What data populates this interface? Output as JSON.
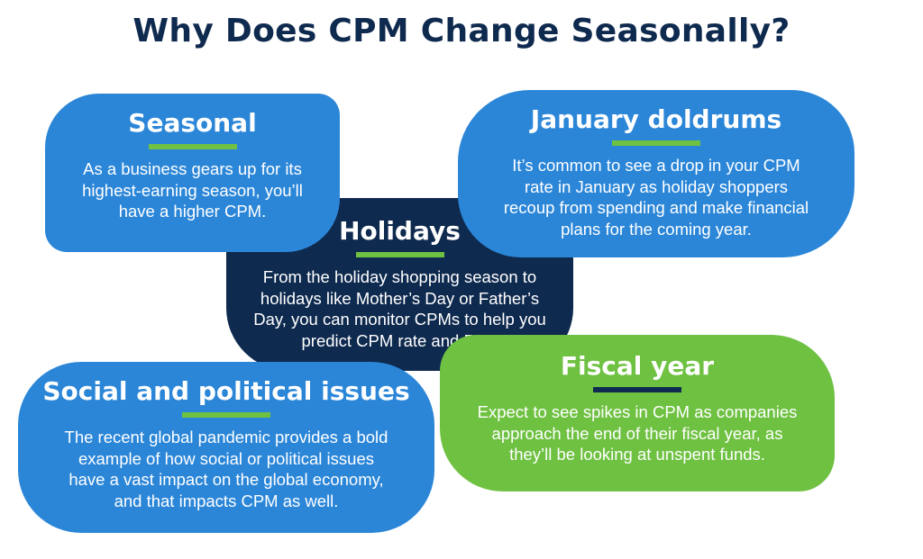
{
  "title": "Why Does CPM Change Seasonally?",
  "colors": {
    "title": "#0f2a4f",
    "blue": "#2b86d8",
    "navy": "#0f2a4f",
    "green": "#6fc142"
  },
  "cards": {
    "seasonal": {
      "heading": "Seasonal",
      "body": "As a business gears up for its\nhighest-earning season, you’ll\nhave a higher CPM."
    },
    "january": {
      "heading": "January doldrums",
      "body": "It’s common to see a drop in your CPM\nrate in January as holiday shoppers\nrecoup from spending and make financial\nplans for the coming year."
    },
    "holidays": {
      "heading": "Holidays",
      "body": "From the holiday shopping season to\nholidays like Mother’s Day or Father’s\nDay, you can monitor CPMs to help you\npredict CPM rate and ROI."
    },
    "social": {
      "heading": "Social and political issues",
      "body": "The recent global pandemic provides a bold\nexample of how social or political issues\nhave a vast impact on the global economy,\nand that impacts CPM as well."
    },
    "fiscal": {
      "heading": "Fiscal year",
      "body": "Expect to see spikes in CPM as companies\napproach the end of their fiscal year, as\nthey’ll be looking at unspent funds."
    }
  }
}
